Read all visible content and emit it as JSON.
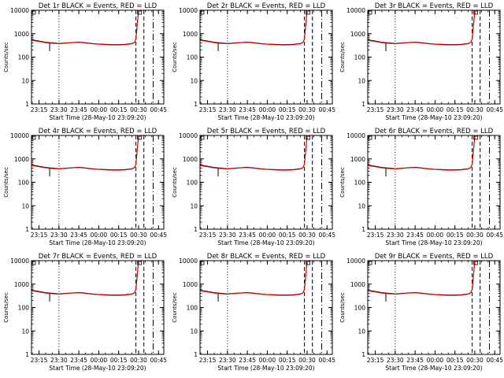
{
  "colors": {
    "background": "#ffffff",
    "axes": "#000000",
    "events": "#000000",
    "lld": "#ff0000"
  },
  "chart_data": [
    {
      "panel": "1r",
      "title": "Det 1r BLACK = Events, RED = LLD",
      "xlabel": "Start Time (28-May-10 23:09:20)",
      "ylabel": "Counts/sec",
      "markers": [
        "23:30",
        "00:28",
        "00:34",
        "00:41"
      ]
    },
    {
      "panel": "2r",
      "title": "Det 2r BLACK = Events, RED = LLD",
      "xlabel": "Start Time (28-May-10 23:09:20)",
      "ylabel": "Counts/sec",
      "markers": [
        "23:30",
        "00:28",
        "00:34",
        "00:41"
      ]
    },
    {
      "panel": "3r",
      "title": "Det 3r BLACK = Events, RED = LLD",
      "xlabel": "Start Time (28-May-10 23:09:20)",
      "ylabel": "Counts/sec",
      "markers": [
        "23:30",
        "00:28",
        "00:34",
        "00:41"
      ]
    },
    {
      "panel": "4r",
      "title": "Det 4r BLACK = Events, RED = LLD",
      "xlabel": "Start Time (28-May-10 23:09:20)",
      "ylabel": "Counts/sec",
      "markers": [
        "23:30",
        "00:28",
        "00:34",
        "00:41"
      ]
    },
    {
      "panel": "5r",
      "title": "Det 5r BLACK = Events, RED = LLD",
      "xlabel": "Start Time (28-May-10 23:09:20)",
      "ylabel": "Counts/sec",
      "markers": [
        "23:30",
        "00:28",
        "00:34",
        "00:41"
      ]
    },
    {
      "panel": "6r",
      "title": "Det 6r BLACK = Events, RED = LLD",
      "xlabel": "Start Time (28-May-10 23:09:20)",
      "ylabel": "Counts/sec",
      "markers": [
        "23:30",
        "00:28",
        "00:34",
        "00:41"
      ]
    },
    {
      "panel": "7r",
      "title": "Det 7r BLACK = Events, RED = LLD",
      "xlabel": "Start Time (28-May-10 23:09:20)",
      "ylabel": "Counts/sec",
      "markers": [
        "23:30",
        "00:28",
        "00:34",
        "00:41"
      ]
    },
    {
      "panel": "8r",
      "title": "Det 8r BLACK = Events, RED = LLD",
      "xlabel": "Start Time (28-May-10 23:09:20)",
      "ylabel": "Counts/sec",
      "markers": [
        "23:30",
        "00:28",
        "00:34",
        "00:41"
      ]
    },
    {
      "panel": "9r",
      "title": "Det 9r BLACK = Events, RED = LLD",
      "xlabel": "Start Time (28-May-10 23:09:20)",
      "ylabel": "Counts/sec",
      "markers": [
        "23:30",
        "00:28",
        "00:34",
        "00:41"
      ]
    }
  ],
  "shared": {
    "type": "line",
    "yscale": "log",
    "ylim": [
      1,
      10000
    ],
    "xlim": [
      "23:09:20",
      "00:49:00"
    ],
    "ytick_labels": [
      "10000",
      "1000",
      "100",
      "10",
      "1"
    ],
    "ytick_values": [
      10000,
      1000,
      100,
      10,
      1
    ],
    "xtick_labels": [
      "23:15",
      "23:30",
      "23:45",
      "00:00",
      "00:15",
      "00:30",
      "00:45"
    ],
    "xtick_values": [
      "23:15",
      "23:30",
      "23:45",
      "00:00",
      "00:15",
      "00:30",
      "00:45"
    ],
    "series": [
      {
        "color": "#000000",
        "x": [
          "23:09:20",
          "23:15",
          "23:20",
          "23:22",
          "23:26",
          "23:30",
          "23:35",
          "23:40",
          "23:45",
          "23:50",
          "23:55",
          "00:00",
          "00:05",
          "00:10",
          "00:15",
          "00:20",
          "00:25",
          "00:27",
          "00:28",
          "00:29",
          "00:30",
          "00:31"
        ],
        "values": [
          550,
          480,
          430,
          420,
          400,
          380,
          400,
          420,
          440,
          410,
          380,
          360,
          350,
          340,
          340,
          350,
          380,
          430,
          600,
          2500,
          12000,
          12000
        ]
      },
      {
        "color": "#ff0000",
        "x": [
          "23:09:20",
          "23:15",
          "23:20",
          "23:22",
          "23:26",
          "23:30",
          "23:35",
          "23:40",
          "23:45",
          "23:50",
          "23:55",
          "00:00",
          "00:05",
          "00:10",
          "00:15",
          "00:20",
          "00:25",
          "00:27",
          "00:28",
          "00:29",
          "00:30",
          "00:31"
        ],
        "values": [
          520,
          460,
          410,
          400,
          385,
          370,
          390,
          410,
          425,
          400,
          370,
          350,
          340,
          330,
          330,
          340,
          370,
          420,
          580,
          2400,
          11000,
          11000
        ]
      }
    ],
    "dip": {
      "x": "23:23",
      "values": [
        400,
        180
      ]
    }
  }
}
